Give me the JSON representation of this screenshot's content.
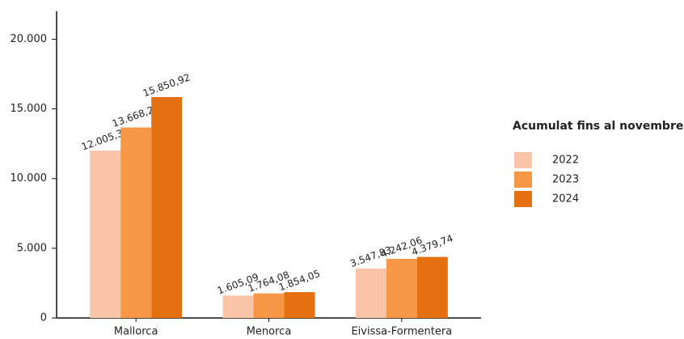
{
  "chart_data": {
    "type": "bar",
    "categories": [
      "Mallorca",
      "Menorca",
      "Eivissa-Formentera"
    ],
    "series": [
      {
        "name": "2022",
        "color": "#f9c4a8",
        "values": [
          12005.31,
          1605.09,
          3547.83
        ],
        "value_labels": [
          "12.005,31",
          "1.605,09",
          "3.547,83"
        ]
      },
      {
        "name": "2023",
        "color": "#f69746",
        "values": [
          13668.24,
          1764.08,
          4242.06
        ],
        "value_labels": [
          "13.668,24",
          "1.764,08",
          "4.242,06"
        ]
      },
      {
        "name": "2024",
        "color": "#e5700f",
        "values": [
          15850.92,
          1854.05,
          4379.74
        ],
        "value_labels": [
          "15.850,92",
          "1.854,05",
          "4.379,74"
        ]
      }
    ],
    "legend_title": "Acumulat fins al novembre",
    "legend_position": "right",
    "ylim": [
      0,
      22000
    ],
    "yticks": [
      0,
      {
        "value": 5000,
        "label": "5.000"
      },
      {
        "value": 10000,
        "label": "10.000"
      },
      {
        "value": 15000,
        "label": "15.000"
      },
      {
        "value": 20000,
        "label": "20.000"
      }
    ],
    "grid": false
  }
}
